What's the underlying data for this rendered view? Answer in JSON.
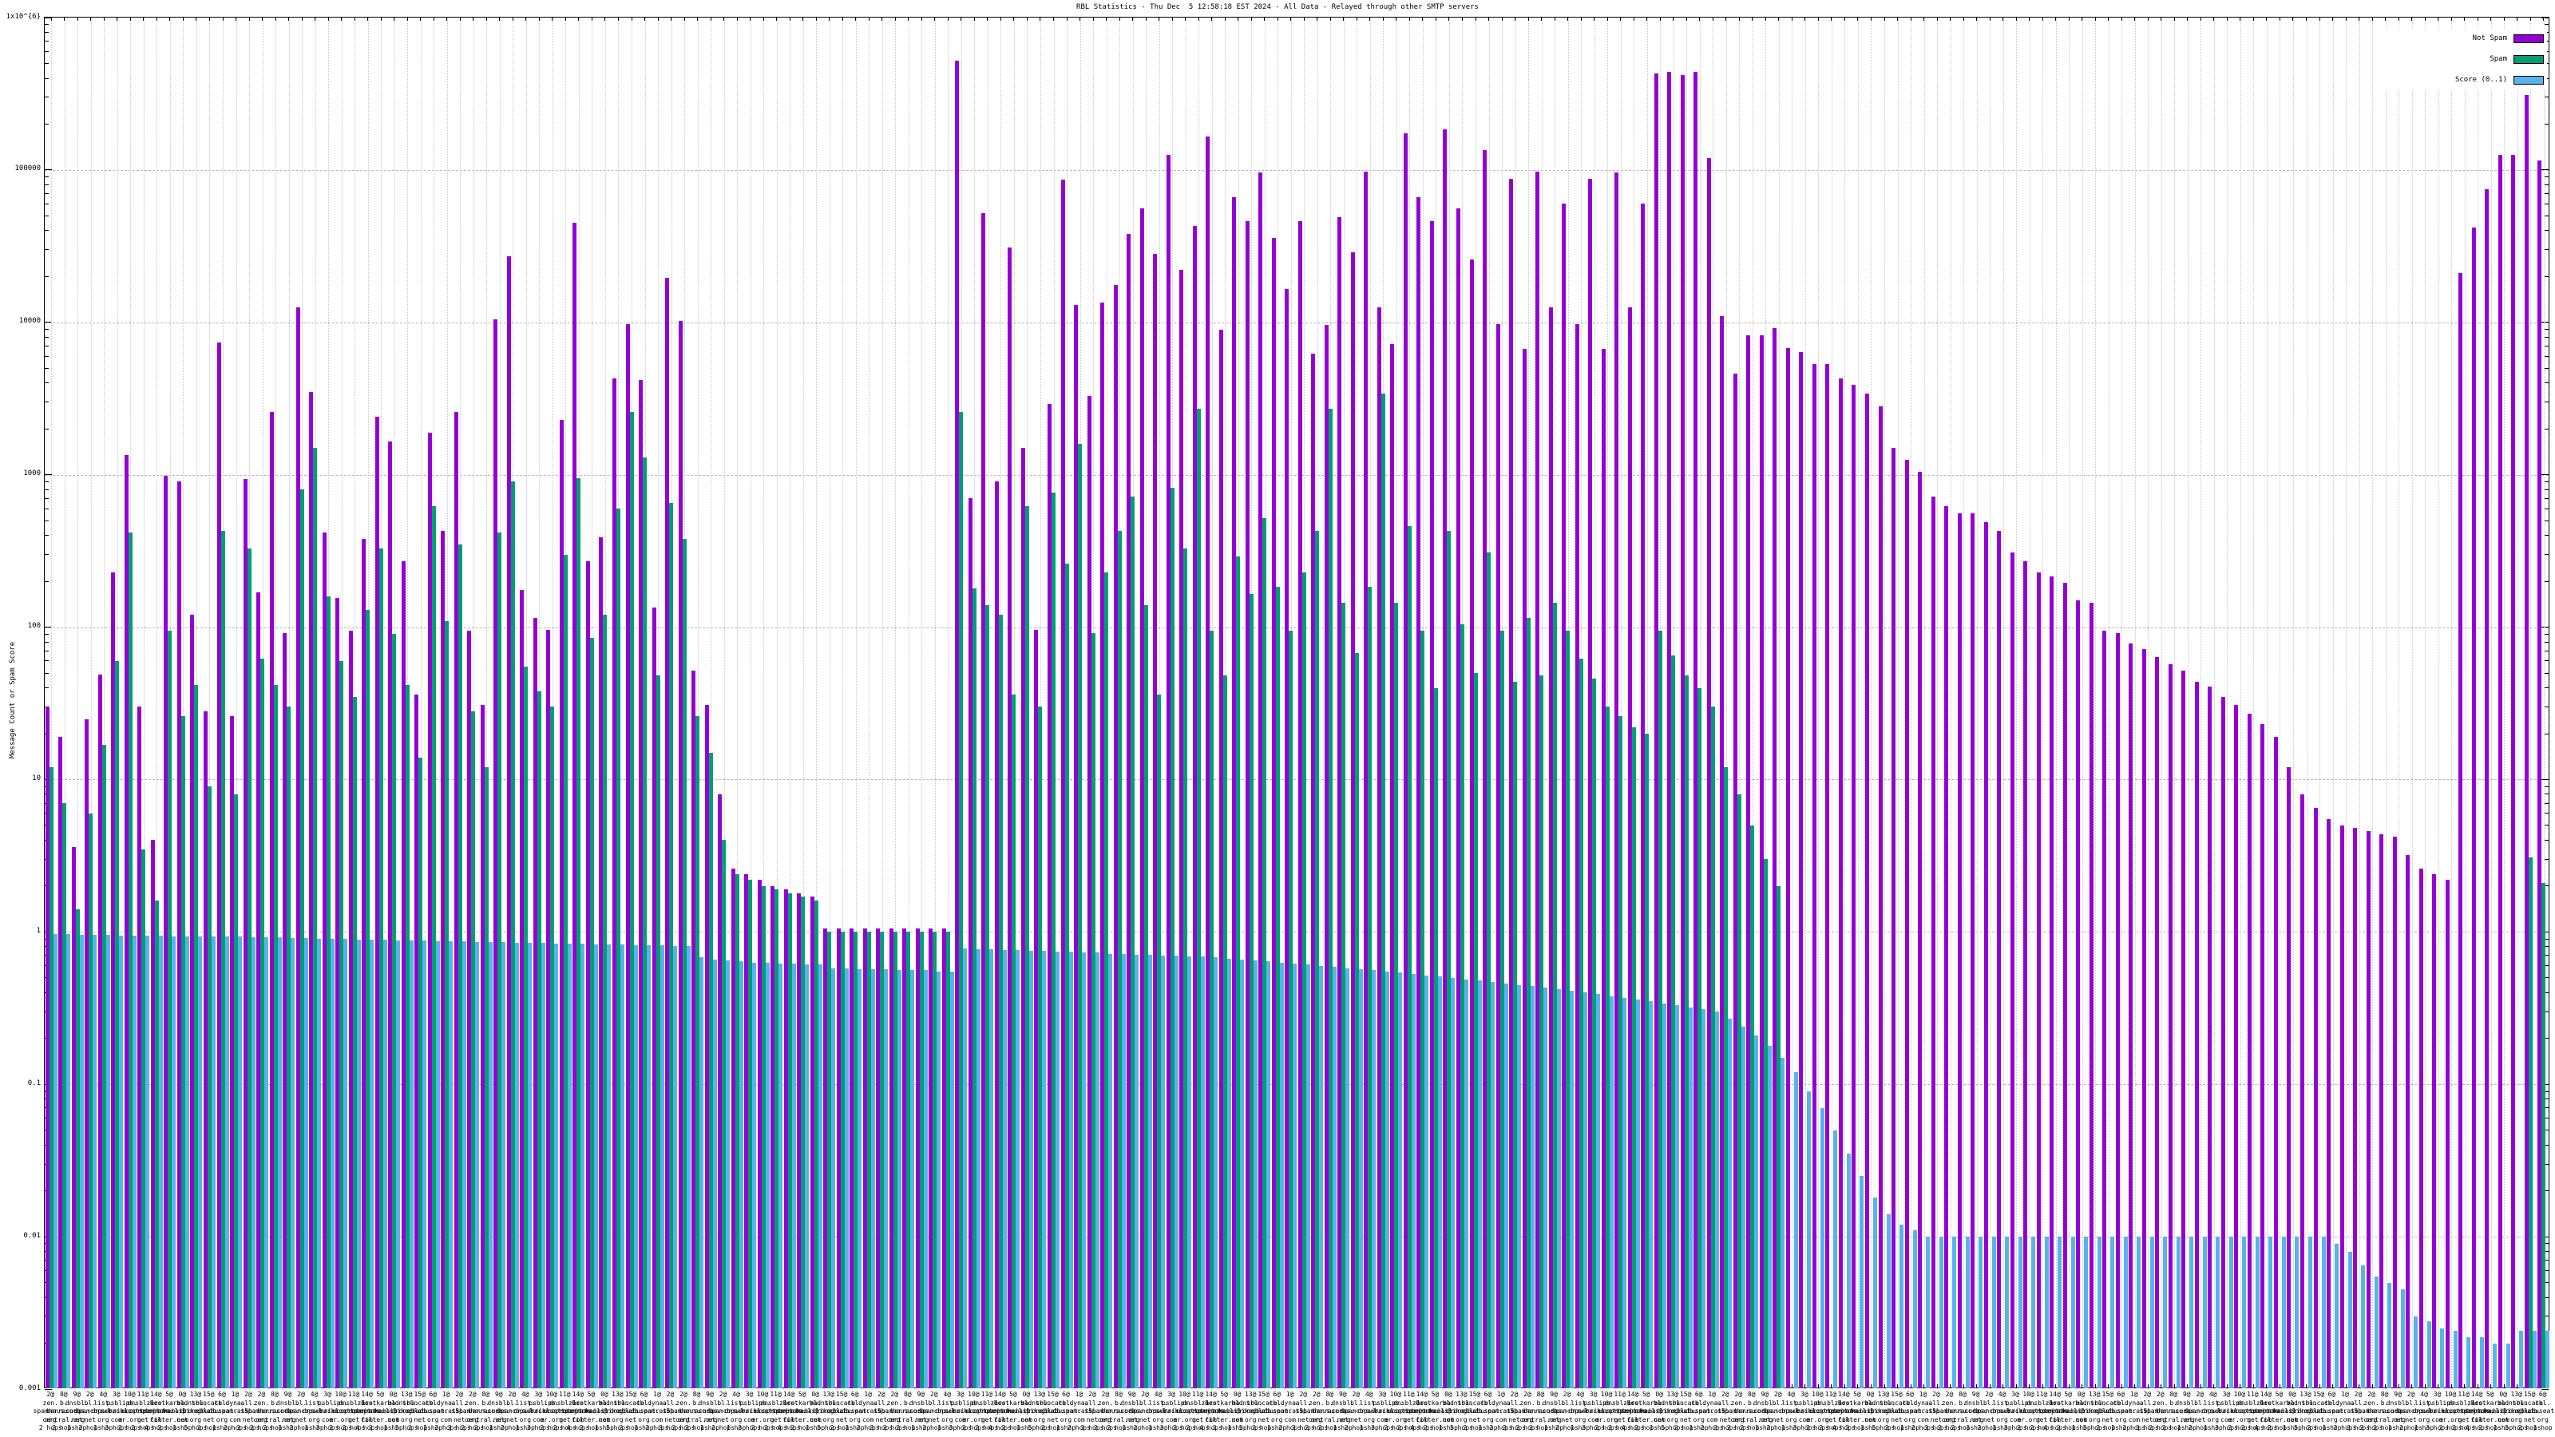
{
  "title": "RBL Statistics - Thu Dec  5 12:58:18 EST 2024 - All Data - Relayed through other SMTP servers",
  "y_axis": {
    "label": "Message Count or Spam Score",
    "ticks": [
      {
        "label": "1x10^{6}",
        "value": 1000000
      },
      {
        "label": "100000",
        "value": 100000
      },
      {
        "label": "10000",
        "value": 10000
      },
      {
        "label": "1000",
        "value": 1000
      },
      {
        "label": "100",
        "value": 100
      },
      {
        "label": "10",
        "value": 10
      },
      {
        "label": "1",
        "value": 1
      },
      {
        "label": "0.1",
        "value": 0.1
      },
      {
        "label": "0.01",
        "value": 0.01
      },
      {
        "label": "0.001",
        "value": 0.001
      }
    ]
  },
  "legend": [
    {
      "label": "Not Spam",
      "color": "#9400d3"
    },
    {
      "label": "Spam",
      "color": "#009e73"
    },
    {
      "label": "Score (0..1)",
      "color": "#56b4e9"
    }
  ],
  "chart_data": {
    "type": "bar",
    "y_scale": "log",
    "ylim": [
      0.001,
      1000000
    ],
    "grid": "dotted, every decade horizontal, every cluster vertical",
    "legend_position": "top-right inside",
    "series_names": [
      "Not Spam",
      "Spam",
      "Score (0..1)"
    ],
    "columns": [
      "not_spam",
      "spam",
      "score"
    ],
    "x_label_cycle": [
      "2@|zen.|spamhaus.|org|2 hops",
      "8@|b.|barracuda|central.org|2 hops",
      "9@|dnsbl.|sorbs.|net|1 hop",
      "2@|bl.|spamcop.|net|2 hops",
      "4@|list.|dnswl.|org|1 hop",
      "3@|psbl.|surriel.|com|3 hops",
      "10@|ips.|backscatter|er.org|2 hops",
      "11@|dnsbl-1.|uceprotect.|net|2 hops",
      "14@|zero.|spamrats.|com|4 hops",
      "5@|hostkarma.|junkemail|filter.com|2 hops",
      "0@|bl.|mailspike.|net|1 hop",
      "13@|dnsbl.|dronebl.|org|5 hops",
      "15@|truncate.|gbudb.|net|2 hops",
      "6@|cbl.|abuseat.|org|1 hop",
      "1@|dyna.|spamrats.|com|2 hops",
      "2@|all.|s5h.|net|3 hops"
    ],
    "rows": [
      [
        30,
        12,
        0.97
      ],
      [
        19,
        7,
        0.97
      ],
      [
        3.6,
        1.4,
        0.96
      ],
      [
        25,
        6,
        0.96
      ],
      [
        49,
        17,
        0.96
      ],
      [
        230,
        60,
        0.95
      ],
      [
        1350,
        420,
        0.95
      ],
      [
        30,
        3.5,
        0.95
      ],
      [
        4,
        1.6,
        0.95
      ],
      [
        980,
        95,
        0.94
      ],
      [
        900,
        26,
        0.94
      ],
      [
        120,
        42,
        0.94
      ],
      [
        28,
        9,
        0.93
      ],
      [
        7400,
        430,
        0.93
      ],
      [
        26,
        8,
        0.93
      ],
      [
        940,
        330,
        0.92
      ],
      [
        170,
        62,
        0.92
      ],
      [
        2600,
        42,
        0.92
      ],
      [
        92,
        30,
        0.91
      ],
      [
        12500,
        800,
        0.91
      ],
      [
        3500,
        1500,
        0.9
      ],
      [
        420,
        160,
        0.9
      ],
      [
        155,
        60,
        0.9
      ],
      [
        95,
        35,
        0.89
      ],
      [
        380,
        130,
        0.89
      ],
      [
        2400,
        330,
        0.89
      ],
      [
        1650,
        90,
        0.88
      ],
      [
        270,
        42,
        0.88
      ],
      [
        36,
        14,
        0.88
      ],
      [
        1900,
        620,
        0.87
      ],
      [
        430,
        110,
        0.87
      ],
      [
        2600,
        350,
        0.87
      ],
      [
        95,
        28,
        0.86
      ],
      [
        31,
        12,
        0.86
      ],
      [
        10500,
        420,
        0.86
      ],
      [
        27000,
        900,
        0.85
      ],
      [
        175,
        55,
        0.85
      ],
      [
        115,
        38,
        0.85
      ],
      [
        96,
        30,
        0.84
      ],
      [
        2300,
        300,
        0.84
      ],
      [
        45000,
        950,
        0.84
      ],
      [
        270,
        85,
        0.83
      ],
      [
        390,
        120,
        0.83
      ],
      [
        4300,
        600,
        0.83
      ],
      [
        9800,
        2600,
        0.82
      ],
      [
        4200,
        1300,
        0.82
      ],
      [
        135,
        48,
        0.82
      ],
      [
        19500,
        650,
        0.81
      ],
      [
        10200,
        380,
        0.81
      ],
      [
        52,
        26,
        0.68
      ],
      [
        31,
        15,
        0.66
      ],
      [
        8,
        4,
        0.65
      ],
      [
        2.6,
        2.4,
        0.64
      ],
      [
        2.4,
        2.2,
        0.63
      ],
      [
        2.2,
        2,
        0.63
      ],
      [
        2,
        1.9,
        0.62
      ],
      [
        1.9,
        1.8,
        0.62
      ],
      [
        1.8,
        1.7,
        0.61
      ],
      [
        1.7,
        1.6,
        0.61
      ],
      [
        1.05,
        1,
        0.58
      ],
      [
        1.05,
        1,
        0.58
      ],
      [
        1.05,
        1,
        0.57
      ],
      [
        1.05,
        1,
        0.57
      ],
      [
        1.05,
        1,
        0.57
      ],
      [
        1.05,
        1,
        0.56
      ],
      [
        1.05,
        1,
        0.56
      ],
      [
        1.05,
        1,
        0.56
      ],
      [
        1.05,
        1,
        0.55
      ],
      [
        1.05,
        1,
        0.55
      ],
      [
        520000,
        2600,
        0.78
      ],
      [
        700,
        180,
        0.77
      ],
      [
        52000,
        140,
        0.77
      ],
      [
        900,
        120,
        0.76
      ],
      [
        31000,
        36,
        0.76
      ],
      [
        1500,
        620,
        0.75
      ],
      [
        96,
        30,
        0.75
      ],
      [
        2900,
        760,
        0.74
      ],
      [
        86000,
        260,
        0.74
      ],
      [
        13000,
        1600,
        0.73
      ],
      [
        3300,
        92,
        0.73
      ],
      [
        13500,
        230,
        0.72
      ],
      [
        17500,
        430,
        0.72
      ],
      [
        38000,
        720,
        0.71
      ],
      [
        56000,
        140,
        0.71
      ],
      [
        28000,
        36,
        0.7
      ],
      [
        125000,
        820,
        0.7
      ],
      [
        22000,
        330,
        0.69
      ],
      [
        43000,
        2700,
        0.69
      ],
      [
        165000,
        95,
        0.68
      ],
      [
        9000,
        48,
        0.67
      ],
      [
        66000,
        290,
        0.66
      ],
      [
        46000,
        165,
        0.65
      ],
      [
        96000,
        520,
        0.64
      ],
      [
        36000,
        185,
        0.63
      ],
      [
        16500,
        95,
        0.62
      ],
      [
        46000,
        230,
        0.61
      ],
      [
        6200,
        430,
        0.6
      ],
      [
        9600,
        2700,
        0.59
      ],
      [
        49000,
        145,
        0.58
      ],
      [
        29000,
        68,
        0.57
      ],
      [
        97000,
        185,
        0.56
      ],
      [
        12500,
        3400,
        0.55
      ],
      [
        7200,
        145,
        0.54
      ],
      [
        175000,
        460,
        0.53
      ],
      [
        66000,
        95,
        0.52
      ],
      [
        46000,
        40,
        0.51
      ],
      [
        185000,
        430,
        0.5
      ],
      [
        56000,
        105,
        0.49
      ],
      [
        26000,
        50,
        0.48
      ],
      [
        135000,
        310,
        0.47
      ],
      [
        9800,
        95,
        0.46
      ],
      [
        87000,
        44,
        0.45
      ],
      [
        6700,
        115,
        0.44
      ],
      [
        97000,
        48,
        0.43
      ],
      [
        12500,
        145,
        0.42
      ],
      [
        60000,
        95,
        0.41
      ],
      [
        9800,
        62,
        0.4
      ],
      [
        87000,
        46,
        0.39
      ],
      [
        6700,
        30,
        0.38
      ],
      [
        96000,
        26,
        0.37
      ],
      [
        12500,
        22,
        0.36
      ],
      [
        60000,
        20,
        0.35
      ],
      [
        430000,
        95,
        0.34
      ],
      [
        440000,
        65,
        0.33
      ],
      [
        420000,
        48,
        0.32
      ],
      [
        440000,
        40,
        0.31
      ],
      [
        120000,
        30,
        0.3
      ],
      [
        11000,
        12,
        0.27
      ],
      [
        4600,
        8,
        0.24
      ],
      [
        8200,
        5,
        0.21
      ],
      [
        8200,
        3,
        0.18
      ],
      [
        9200,
        2,
        0.15
      ],
      [
        6800,
        0,
        0.12
      ],
      [
        6400,
        0,
        0.09
      ],
      [
        5300,
        0,
        0.07
      ],
      [
        5300,
        0,
        0.05
      ],
      [
        4300,
        0,
        0.035
      ],
      [
        3900,
        0,
        0.025
      ],
      [
        3400,
        0,
        0.018
      ],
      [
        2800,
        0,
        0.014
      ],
      [
        1500,
        0,
        0.012
      ],
      [
        1250,
        0,
        0.011
      ],
      [
        1050,
        0,
        0.01
      ],
      [
        720,
        0,
        0.01
      ],
      [
        620,
        0,
        0.01
      ],
      [
        560,
        0,
        0.01
      ],
      [
        560,
        0,
        0.01
      ],
      [
        490,
        0,
        0.01
      ],
      [
        430,
        0,
        0.01
      ],
      [
        310,
        0,
        0.01
      ],
      [
        270,
        0,
        0.01
      ],
      [
        230,
        0,
        0.01
      ],
      [
        215,
        0,
        0.01
      ],
      [
        195,
        0,
        0.01
      ],
      [
        150,
        0,
        0.01
      ],
      [
        145,
        0,
        0.01
      ],
      [
        95,
        0,
        0.01
      ],
      [
        92,
        0,
        0.01
      ],
      [
        78,
        0,
        0.01
      ],
      [
        72,
        0,
        0.01
      ],
      [
        64,
        0,
        0.01
      ],
      [
        57,
        0,
        0.01
      ],
      [
        52,
        0,
        0.01
      ],
      [
        44,
        0,
        0.01
      ],
      [
        41,
        0,
        0.01
      ],
      [
        35,
        0,
        0.01
      ],
      [
        31,
        0,
        0.01
      ],
      [
        27,
        0,
        0.01
      ],
      [
        23,
        0,
        0.01
      ],
      [
        19,
        0,
        0.01
      ],
      [
        12,
        0,
        0.01
      ],
      [
        8,
        0,
        0.01
      ],
      [
        6.5,
        0,
        0.01
      ],
      [
        5.5,
        0,
        0.009
      ],
      [
        5,
        0,
        0.008
      ],
      [
        4.8,
        0,
        0.0065
      ],
      [
        4.6,
        0,
        0.0055
      ],
      [
        4.4,
        0,
        0.005
      ],
      [
        4.2,
        0,
        0.0045
      ],
      [
        3.2,
        0,
        0.003
      ],
      [
        2.6,
        0,
        0.0028
      ],
      [
        2.4,
        0,
        0.0025
      ],
      [
        2.2,
        0,
        0.0024
      ],
      [
        21000,
        0,
        0.0022
      ],
      [
        42000,
        0,
        0.0022
      ],
      [
        75000,
        0,
        0.002
      ],
      [
        125000,
        0,
        0.002
      ],
      [
        125000,
        0,
        0.0024
      ],
      [
        310000,
        3.1,
        0.0024
      ],
      [
        115000,
        2.1,
        0.0024
      ]
    ]
  }
}
